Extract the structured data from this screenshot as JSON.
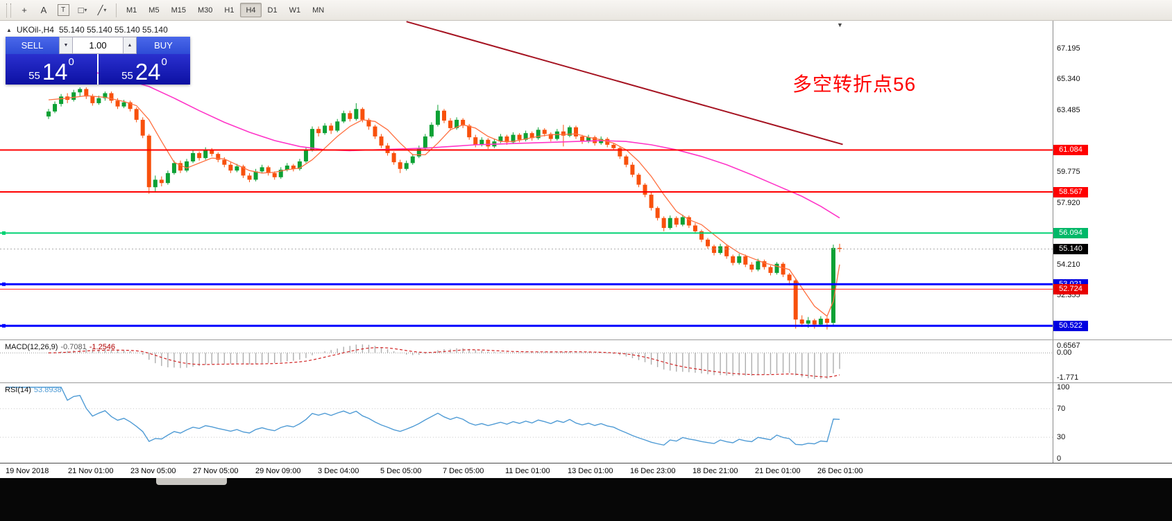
{
  "toolbar": {
    "tools": [
      {
        "name": "cursor-icon",
        "glyph": "+"
      },
      {
        "name": "text-label-icon",
        "glyph": "A"
      },
      {
        "name": "text-box-icon",
        "glyph": "T",
        "boxed": true
      },
      {
        "name": "shapes-icon",
        "glyph": "□",
        "caret": "▾"
      },
      {
        "name": "line-tools-icon",
        "glyph": "╱",
        "caret": "▾"
      }
    ],
    "timeframes": [
      {
        "label": "M1"
      },
      {
        "label": "M5"
      },
      {
        "label": "M15"
      },
      {
        "label": "M30"
      },
      {
        "label": "H1"
      },
      {
        "label": "H4",
        "active": true
      },
      {
        "label": "D1"
      },
      {
        "label": "W1"
      },
      {
        "label": "MN"
      }
    ]
  },
  "chart": {
    "symbol": "UKOil-,H4",
    "ohlc": "55.140 55.140 55.140 55.140",
    "annotation": {
      "text": "多空转折点56",
      "color": "#FE0000"
    },
    "trade_panel": {
      "sell": "SELL",
      "buy": "BUY",
      "volume": "1.00",
      "bid": {
        "main": "55",
        "big": "14",
        "sup": "0"
      },
      "ask": {
        "main": "55",
        "big": "24",
        "sup": "0"
      }
    }
  },
  "price_axis": {
    "ticks": [
      "67.195",
      "65.340",
      "63.485",
      "59.775",
      "57.920",
      "54.210",
      "52.355"
    ],
    "badges": [
      {
        "value": "61.084",
        "color": "#FF0000"
      },
      {
        "value": "58.567",
        "color": "#FF0000"
      },
      {
        "value": "56.094",
        "color": "#00B868"
      },
      {
        "value": "55.140",
        "color": "#000000"
      },
      {
        "value": "53.021",
        "color": "#0000E0"
      },
      {
        "value": "52.724",
        "color": "#E80000"
      },
      {
        "value": "50.522",
        "color": "#0000E0"
      }
    ]
  },
  "time_axis": {
    "labels": [
      "19 Nov 2018",
      "21 Nov 01:00",
      "23 Nov 05:00",
      "27 Nov 05:00",
      "29 Nov 09:00",
      "3 Dec 04:00",
      "5 Dec 05:00",
      "7 Dec 05:00",
      "11 Dec 01:00",
      "13 Dec 01:00",
      "16 Dec 23:00",
      "18 Dec 21:00",
      "21 Dec 01:00",
      "26 Dec 01:00"
    ]
  },
  "macd_panel": {
    "label": "MACD(12,26,9)",
    "value1": "-0.7081",
    "value2": "-1.2546",
    "axis_top": "0.6567",
    "axis_zero": "0.00",
    "axis_bottom": "-1.771"
  },
  "rsi_panel": {
    "label": "RSI(14)",
    "value": "53.8938",
    "axis": [
      "100",
      "70",
      "30",
      "0"
    ]
  },
  "chart_data": {
    "type": "candlestick",
    "symbol": "UKOil-",
    "timeframe": "H4",
    "title": "UKOil-,H4",
    "ylim": [
      49.95,
      68.6
    ],
    "colors": {
      "up": "#0CA134",
      "down": "#F8500C"
    },
    "candles": [
      [
        63.1,
        63.55,
        62.95,
        63.4
      ],
      [
        63.4,
        64.0,
        63.3,
        63.85
      ],
      [
        63.85,
        64.45,
        63.7,
        64.3
      ],
      [
        64.3,
        64.5,
        63.9,
        64.1
      ],
      [
        64.1,
        64.7,
        64.0,
        64.55
      ],
      [
        64.55,
        64.85,
        64.3,
        64.75
      ],
      [
        64.75,
        64.85,
        64.15,
        64.3
      ],
      [
        64.3,
        64.45,
        63.75,
        63.9
      ],
      [
        63.9,
        64.35,
        63.8,
        64.2
      ],
      [
        64.2,
        64.6,
        64.05,
        64.5
      ],
      [
        64.5,
        64.6,
        63.9,
        64.05
      ],
      [
        64.05,
        64.2,
        63.55,
        63.7
      ],
      [
        63.7,
        64.1,
        63.6,
        63.95
      ],
      [
        63.95,
        64.05,
        63.4,
        63.55
      ],
      [
        63.55,
        63.65,
        62.75,
        62.9
      ],
      [
        62.9,
        63.05,
        61.8,
        61.95
      ],
      [
        61.95,
        62.05,
        58.45,
        58.85
      ],
      [
        58.85,
        59.55,
        58.55,
        59.3
      ],
      [
        59.3,
        59.5,
        58.9,
        59.1
      ],
      [
        59.1,
        59.85,
        59.0,
        59.7
      ],
      [
        59.7,
        60.45,
        59.6,
        60.3
      ],
      [
        60.3,
        60.45,
        59.7,
        59.85
      ],
      [
        59.85,
        60.55,
        59.75,
        60.4
      ],
      [
        60.4,
        61.05,
        60.3,
        60.9
      ],
      [
        60.9,
        61.0,
        60.45,
        60.6
      ],
      [
        60.6,
        61.25,
        60.5,
        61.1
      ],
      [
        61.1,
        61.2,
        60.7,
        60.85
      ],
      [
        60.85,
        60.95,
        60.35,
        60.5
      ],
      [
        60.5,
        60.65,
        60.05,
        60.2
      ],
      [
        60.2,
        60.35,
        59.7,
        59.85
      ],
      [
        59.85,
        60.25,
        59.75,
        60.1
      ],
      [
        60.1,
        60.2,
        59.4,
        59.55
      ],
      [
        59.55,
        59.7,
        59.15,
        59.3
      ],
      [
        59.3,
        59.95,
        59.2,
        59.8
      ],
      [
        59.8,
        60.2,
        59.7,
        60.05
      ],
      [
        60.05,
        60.15,
        59.55,
        59.7
      ],
      [
        59.7,
        59.8,
        59.3,
        59.45
      ],
      [
        59.45,
        60.05,
        59.35,
        59.9
      ],
      [
        59.9,
        60.3,
        59.8,
        60.15
      ],
      [
        60.15,
        60.25,
        59.8,
        59.95
      ],
      [
        59.95,
        60.55,
        59.85,
        60.4
      ],
      [
        60.4,
        61.25,
        60.3,
        61.1
      ],
      [
        61.1,
        62.5,
        61.0,
        62.35
      ],
      [
        62.35,
        62.5,
        61.9,
        62.1
      ],
      [
        62.1,
        62.7,
        62.0,
        62.55
      ],
      [
        62.55,
        62.7,
        62.05,
        62.25
      ],
      [
        62.25,
        62.95,
        62.15,
        62.8
      ],
      [
        62.8,
        63.45,
        62.7,
        63.3
      ],
      [
        63.3,
        63.45,
        62.8,
        62.95
      ],
      [
        62.95,
        63.9,
        62.85,
        63.55
      ],
      [
        63.55,
        63.65,
        62.75,
        62.9
      ],
      [
        62.9,
        63.0,
        62.3,
        62.5
      ],
      [
        62.5,
        62.6,
        61.75,
        61.9
      ],
      [
        61.9,
        62.05,
        61.2,
        61.35
      ],
      [
        61.35,
        61.5,
        60.75,
        60.9
      ],
      [
        60.9,
        61.0,
        60.2,
        60.35
      ],
      [
        60.35,
        60.5,
        59.7,
        59.95
      ],
      [
        59.95,
        60.45,
        59.85,
        60.3
      ],
      [
        60.3,
        60.85,
        60.2,
        60.7
      ],
      [
        60.7,
        61.35,
        60.6,
        61.2
      ],
      [
        61.2,
        62.05,
        61.1,
        61.9
      ],
      [
        61.9,
        62.75,
        61.8,
        62.6
      ],
      [
        62.6,
        63.8,
        62.5,
        63.45
      ],
      [
        63.45,
        63.55,
        62.7,
        62.85
      ],
      [
        62.85,
        63.0,
        62.25,
        62.4
      ],
      [
        62.4,
        63.05,
        62.3,
        62.9
      ],
      [
        62.9,
        63.0,
        62.4,
        62.55
      ],
      [
        62.55,
        62.65,
        61.7,
        61.85
      ],
      [
        61.85,
        62.0,
        61.25,
        61.4
      ],
      [
        61.4,
        61.85,
        61.3,
        61.7
      ],
      [
        61.7,
        61.8,
        61.15,
        61.3
      ],
      [
        61.3,
        61.75,
        61.2,
        61.6
      ],
      [
        61.6,
        62.05,
        61.5,
        61.9
      ],
      [
        61.9,
        62.0,
        61.4,
        61.55
      ],
      [
        61.55,
        62.15,
        61.45,
        62.0
      ],
      [
        62.0,
        62.1,
        61.55,
        61.7
      ],
      [
        61.7,
        62.25,
        61.6,
        62.1
      ],
      [
        62.1,
        62.2,
        61.65,
        61.8
      ],
      [
        61.8,
        62.45,
        61.7,
        62.3
      ],
      [
        62.3,
        62.4,
        61.9,
        62.05
      ],
      [
        62.05,
        62.15,
        61.6,
        61.75
      ],
      [
        61.75,
        62.35,
        61.65,
        62.2
      ],
      [
        62.2,
        62.6,
        61.3,
        61.95
      ],
      [
        61.95,
        62.55,
        61.85,
        62.45
      ],
      [
        62.45,
        62.55,
        61.75,
        61.9
      ],
      [
        61.9,
        62.0,
        61.45,
        61.6
      ],
      [
        61.6,
        62.0,
        61.5,
        61.85
      ],
      [
        61.85,
        61.95,
        61.35,
        61.5
      ],
      [
        61.5,
        61.9,
        61.4,
        61.75
      ],
      [
        61.75,
        61.85,
        61.25,
        61.4
      ],
      [
        61.4,
        61.5,
        61.05,
        61.2
      ],
      [
        61.2,
        61.3,
        60.55,
        60.7
      ],
      [
        60.7,
        60.8,
        60.05,
        60.2
      ],
      [
        60.2,
        60.35,
        59.45,
        59.6
      ],
      [
        59.6,
        59.7,
        58.85,
        59.0
      ],
      [
        59.0,
        59.1,
        58.25,
        58.4
      ],
      [
        58.4,
        58.55,
        57.45,
        57.6
      ],
      [
        57.6,
        57.7,
        56.85,
        57.0
      ],
      [
        57.0,
        57.1,
        56.2,
        56.4
      ],
      [
        56.4,
        57.15,
        56.3,
        57.0
      ],
      [
        57.0,
        57.1,
        56.45,
        56.6
      ],
      [
        56.6,
        57.2,
        56.5,
        57.05
      ],
      [
        57.05,
        57.15,
        56.4,
        56.55
      ],
      [
        56.55,
        56.7,
        56.05,
        56.2
      ],
      [
        56.2,
        56.3,
        55.55,
        55.7
      ],
      [
        55.7,
        55.8,
        55.15,
        55.3
      ],
      [
        55.3,
        55.4,
        54.75,
        54.9
      ],
      [
        54.9,
        55.45,
        54.8,
        55.3
      ],
      [
        55.3,
        55.4,
        54.55,
        54.7
      ],
      [
        54.7,
        54.8,
        54.15,
        54.3
      ],
      [
        54.3,
        54.85,
        54.2,
        54.7
      ],
      [
        54.7,
        54.8,
        54.05,
        54.2
      ],
      [
        54.2,
        54.35,
        53.75,
        53.9
      ],
      [
        53.9,
        54.55,
        53.8,
        54.4
      ],
      [
        54.4,
        54.5,
        53.9,
        54.05
      ],
      [
        54.05,
        54.15,
        53.55,
        53.7
      ],
      [
        53.7,
        54.35,
        53.6,
        54.25
      ],
      [
        54.25,
        54.35,
        53.45,
        53.6
      ],
      [
        53.6,
        53.7,
        52.95,
        53.25
      ],
      [
        53.25,
        53.35,
        50.35,
        50.9
      ],
      [
        50.9,
        51.15,
        50.45,
        50.65
      ],
      [
        50.65,
        51.05,
        50.4,
        50.85
      ],
      [
        50.85,
        50.95,
        50.35,
        50.6
      ],
      [
        50.6,
        51.1,
        50.5,
        50.95
      ],
      [
        50.95,
        51.05,
        50.3,
        50.7
      ],
      [
        50.7,
        55.4,
        50.55,
        55.2
      ],
      [
        55.2,
        55.45,
        54.95,
        55.14
      ]
    ],
    "hlines": [
      {
        "price": 61.084,
        "color": "#FF0000",
        "w": 2
      },
      {
        "price": 58.567,
        "color": "#FF0000",
        "w": 2
      },
      {
        "price": 56.094,
        "color": "#00D273",
        "w": 2,
        "handle": true
      },
      {
        "price": 55.14,
        "color": "#AAAAAA",
        "w": 1,
        "dash": "2,3"
      },
      {
        "price": 53.021,
        "color": "#0000FF",
        "w": 3,
        "handle": true
      },
      {
        "price": 52.724,
        "color": "#FF2020",
        "w": 1
      },
      {
        "price": 50.522,
        "color": "#0000FF",
        "w": 3,
        "handle": true
      }
    ],
    "trendline": {
      "from": [
        57,
        68.8
      ],
      "to": [
        126.5,
        61.42
      ],
      "color": "#A51220",
      "w": 2
    },
    "ma_slow": {
      "color": "#FF35C8",
      "points": [
        [
          0,
          66.35
        ],
        [
          4,
          66.0
        ],
        [
          8,
          65.7
        ],
        [
          12,
          65.35
        ],
        [
          16,
          64.9
        ],
        [
          20,
          64.2
        ],
        [
          24,
          63.45
        ],
        [
          28,
          62.75
        ],
        [
          32,
          62.15
        ],
        [
          36,
          61.65
        ],
        [
          40,
          61.3
        ],
        [
          44,
          61.1
        ],
        [
          48,
          61.05
        ],
        [
          52,
          61.1
        ],
        [
          56,
          61.15
        ],
        [
          60,
          61.2
        ],
        [
          64,
          61.3
        ],
        [
          68,
          61.4
        ],
        [
          72,
          61.45
        ],
        [
          76,
          61.5
        ],
        [
          80,
          61.55
        ],
        [
          84,
          61.6
        ],
        [
          88,
          61.65
        ],
        [
          92,
          61.6
        ],
        [
          96,
          61.4
        ],
        [
          100,
          61.1
        ],
        [
          104,
          60.7
        ],
        [
          108,
          60.2
        ],
        [
          112,
          59.6
        ],
        [
          116,
          58.95
        ],
        [
          120,
          58.3
        ],
        [
          123,
          57.7
        ],
        [
          126,
          57.0
        ]
      ]
    },
    "ma_fast": {
      "color": "#FF7040",
      "points": [
        [
          0,
          64.1
        ],
        [
          3,
          64.2
        ],
        [
          6,
          64.35
        ],
        [
          9,
          64.25
        ],
        [
          12,
          64.0
        ],
        [
          14,
          63.75
        ],
        [
          16,
          62.9
        ],
        [
          18,
          61.6
        ],
        [
          20,
          60.35
        ],
        [
          22,
          60.0
        ],
        [
          24,
          60.3
        ],
        [
          26,
          60.6
        ],
        [
          28,
          60.55
        ],
        [
          30,
          60.2
        ],
        [
          32,
          59.85
        ],
        [
          34,
          59.7
        ],
        [
          36,
          59.75
        ],
        [
          38,
          59.9
        ],
        [
          40,
          60.0
        ],
        [
          42,
          60.5
        ],
        [
          44,
          61.2
        ],
        [
          46,
          61.9
        ],
        [
          48,
          62.5
        ],
        [
          50,
          62.9
        ],
        [
          52,
          62.8
        ],
        [
          54,
          62.3
        ],
        [
          56,
          61.5
        ],
        [
          58,
          60.8
        ],
        [
          60,
          60.8
        ],
        [
          62,
          61.5
        ],
        [
          64,
          62.3
        ],
        [
          66,
          62.6
        ],
        [
          68,
          62.4
        ],
        [
          70,
          61.9
        ],
        [
          72,
          61.6
        ],
        [
          74,
          61.6
        ],
        [
          76,
          61.75
        ],
        [
          78,
          61.9
        ],
        [
          80,
          62.0
        ],
        [
          84,
          62.05
        ],
        [
          86,
          61.85
        ],
        [
          88,
          61.7
        ],
        [
          90,
          61.5
        ],
        [
          92,
          61.1
        ],
        [
          94,
          60.4
        ],
        [
          96,
          59.5
        ],
        [
          98,
          58.4
        ],
        [
          100,
          57.4
        ],
        [
          102,
          56.9
        ],
        [
          104,
          56.6
        ],
        [
          106,
          56.0
        ],
        [
          108,
          55.4
        ],
        [
          110,
          54.9
        ],
        [
          112,
          54.6
        ],
        [
          114,
          54.3
        ],
        [
          116,
          54.1
        ],
        [
          118,
          53.9
        ],
        [
          120,
          52.8
        ],
        [
          122,
          51.7
        ],
        [
          124,
          51.1
        ],
        [
          125,
          52.0
        ],
        [
          126,
          54.2
        ]
      ]
    },
    "current_price": 55.14,
    "indicators": {
      "macd": {
        "params": [
          12,
          26,
          9
        ],
        "last": [
          -0.7081,
          -1.2546
        ],
        "axis_range": [
          -1.771,
          0.6567
        ]
      },
      "rsi": {
        "period": 14,
        "last": 53.8938,
        "levels": [
          30,
          70
        ],
        "range": [
          0,
          100
        ]
      }
    }
  }
}
